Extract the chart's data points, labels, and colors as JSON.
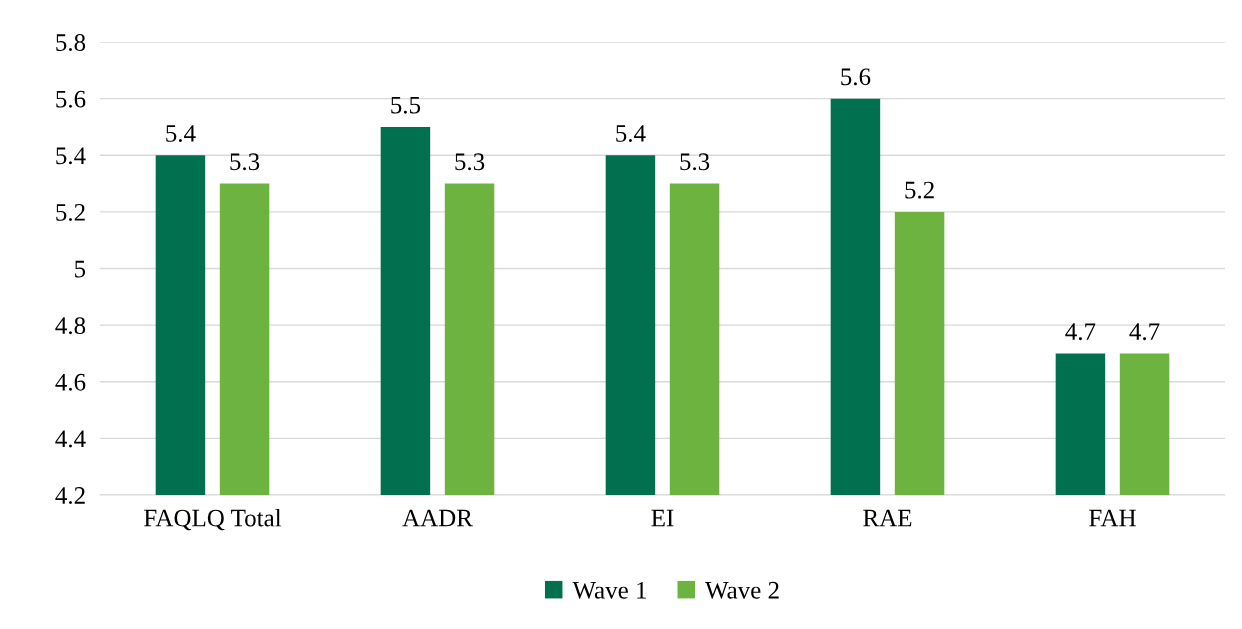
{
  "chart_data": {
    "type": "bar",
    "categories": [
      "FAQLQ Total",
      "AADR",
      "EI",
      "RAE",
      "FAH"
    ],
    "series": [
      {
        "name": "Wave 1",
        "color": "#00704f",
        "values": [
          5.4,
          5.5,
          5.4,
          5.6,
          4.7
        ]
      },
      {
        "name": "Wave 2",
        "color": "#6db33f",
        "values": [
          5.3,
          5.3,
          5.3,
          5.2,
          4.7
        ]
      }
    ],
    "ylim": [
      4.2,
      5.8
    ],
    "yticks": [
      4.2,
      4.4,
      4.6,
      4.8,
      5,
      5.2,
      5.4,
      5.6,
      5.8
    ],
    "grid": "y",
    "legend": "bottom",
    "data_labels": true
  }
}
